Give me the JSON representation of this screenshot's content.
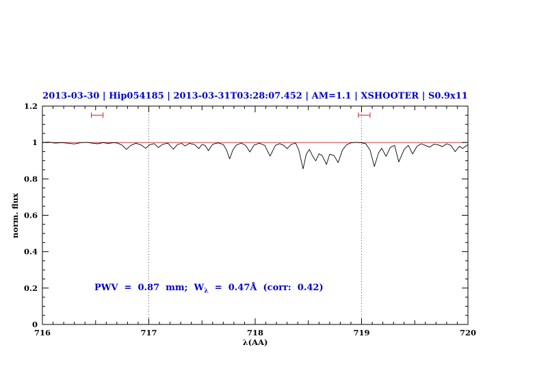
{
  "page": {
    "background": "#ffffff"
  },
  "chart_data": {
    "type": "line",
    "title": "2013-03-30 | Hip054185 | 2013-03-31T03:28:07.452 | AM=1.1 | XSHOOTER | S0.9x11",
    "xlabel": "λ(AA)",
    "ylabel": "norm. flux",
    "xlim": [
      716,
      720
    ],
    "ylim": [
      0,
      1.2
    ],
    "grid": false,
    "legend": "none",
    "xticks": {
      "major": [
        716,
        717,
        718,
        719,
        720
      ],
      "labels": [
        "716",
        "717",
        "718",
        "719",
        "720"
      ],
      "minor_step": 0.1
    },
    "yticks": {
      "major": [
        0,
        0.2,
        0.4,
        0.6,
        0.8,
        1,
        1.2
      ],
      "labels": [
        "0",
        "0.2",
        "0.4",
        "0.6",
        "0.8",
        "1",
        "1.2"
      ],
      "minor_step": 0.05
    },
    "vlines": {
      "x": [
        717,
        719
      ],
      "style": "dotted",
      "color": "#555555"
    },
    "continuum_line": {
      "y": 1.0,
      "color": "#cc2222"
    },
    "range_markers": [
      {
        "x1": 716.46,
        "x2": 716.57,
        "y": 1.15,
        "color": "#cc2222"
      },
      {
        "x1": 718.97,
        "x2": 719.08,
        "y": 1.15,
        "color": "#cc2222"
      }
    ],
    "annotation": {
      "pre": "PWV  =  0.87  mm;  W",
      "sub": "λ",
      "post": "  =  0.47Å  (corr:  0.42)",
      "color": "#0000cc"
    },
    "colors": {
      "title": "#0000cc",
      "axis": "#000000",
      "spectrum": "#000000"
    },
    "series": [
      {
        "name": "telluric-spectrum",
        "color": "#000000",
        "points": [
          [
            716.0,
            1.0
          ],
          [
            716.06,
            1.002
          ],
          [
            716.12,
            0.997
          ],
          [
            716.18,
            0.999
          ],
          [
            716.24,
            0.996
          ],
          [
            716.3,
            0.992
          ],
          [
            716.36,
            0.999
          ],
          [
            716.42,
            1.001
          ],
          [
            716.47,
            0.996
          ],
          [
            716.52,
            0.993
          ],
          [
            716.57,
            0.999
          ],
          [
            716.62,
            0.995
          ],
          [
            716.67,
            0.999
          ],
          [
            716.71,
            0.996
          ],
          [
            716.75,
            0.985
          ],
          [
            716.79,
            0.962
          ],
          [
            716.83,
            0.984
          ],
          [
            716.88,
            0.996
          ],
          [
            716.93,
            0.986
          ],
          [
            716.97,
            0.968
          ],
          [
            717.01,
            0.988
          ],
          [
            717.05,
            0.994
          ],
          [
            717.09,
            0.972
          ],
          [
            717.13,
            0.99
          ],
          [
            717.18,
            0.996
          ],
          [
            717.23,
            0.963
          ],
          [
            717.27,
            0.989
          ],
          [
            717.31,
            0.995
          ],
          [
            717.34,
            0.981
          ],
          [
            717.38,
            0.995
          ],
          [
            717.43,
            0.989
          ],
          [
            717.47,
            0.966
          ],
          [
            717.5,
            0.989
          ],
          [
            717.53,
            0.984
          ],
          [
            717.56,
            0.955
          ],
          [
            717.6,
            0.99
          ],
          [
            717.65,
            0.998
          ],
          [
            717.7,
            0.989
          ],
          [
            717.73,
            0.96
          ],
          [
            717.76,
            0.91
          ],
          [
            717.79,
            0.958
          ],
          [
            717.82,
            0.985
          ],
          [
            717.87,
            0.997
          ],
          [
            717.91,
            0.984
          ],
          [
            717.95,
            0.948
          ],
          [
            717.99,
            0.986
          ],
          [
            718.04,
            0.996
          ],
          [
            718.09,
            0.984
          ],
          [
            718.14,
            0.925
          ],
          [
            718.19,
            0.984
          ],
          [
            718.23,
            0.994
          ],
          [
            718.27,
            0.984
          ],
          [
            718.3,
            0.966
          ],
          [
            718.34,
            0.99
          ],
          [
            718.38,
            0.997
          ],
          [
            718.41,
            0.958
          ],
          [
            718.45,
            0.855
          ],
          [
            718.48,
            0.935
          ],
          [
            718.51,
            0.962
          ],
          [
            718.54,
            0.925
          ],
          [
            718.57,
            0.899
          ],
          [
            718.6,
            0.938
          ],
          [
            718.63,
            0.928
          ],
          [
            718.67,
            0.879
          ],
          [
            718.7,
            0.936
          ],
          [
            718.74,
            0.928
          ],
          [
            718.78,
            0.89
          ],
          [
            718.82,
            0.958
          ],
          [
            718.86,
            0.988
          ],
          [
            718.9,
            0.998
          ],
          [
            718.95,
            1.001
          ],
          [
            719.0,
            0.998
          ],
          [
            719.04,
            0.993
          ],
          [
            719.08,
            0.958
          ],
          [
            719.12,
            0.868
          ],
          [
            719.16,
            0.944
          ],
          [
            719.19,
            0.968
          ],
          [
            719.23,
            0.924
          ],
          [
            719.27,
            0.973
          ],
          [
            719.31,
            0.984
          ],
          [
            719.35,
            0.893
          ],
          [
            719.4,
            0.962
          ],
          [
            719.44,
            0.984
          ],
          [
            719.48,
            0.937
          ],
          [
            719.52,
            0.978
          ],
          [
            719.56,
            0.993
          ],
          [
            719.6,
            0.984
          ],
          [
            719.64,
            0.974
          ],
          [
            719.68,
            0.991
          ],
          [
            719.72,
            0.987
          ],
          [
            719.76,
            0.977
          ],
          [
            719.8,
            0.993
          ],
          [
            719.84,
            0.984
          ],
          [
            719.88,
            0.95
          ],
          [
            719.92,
            0.979
          ],
          [
            719.95,
            0.967
          ],
          [
            720.0,
            0.989
          ]
        ]
      }
    ]
  }
}
